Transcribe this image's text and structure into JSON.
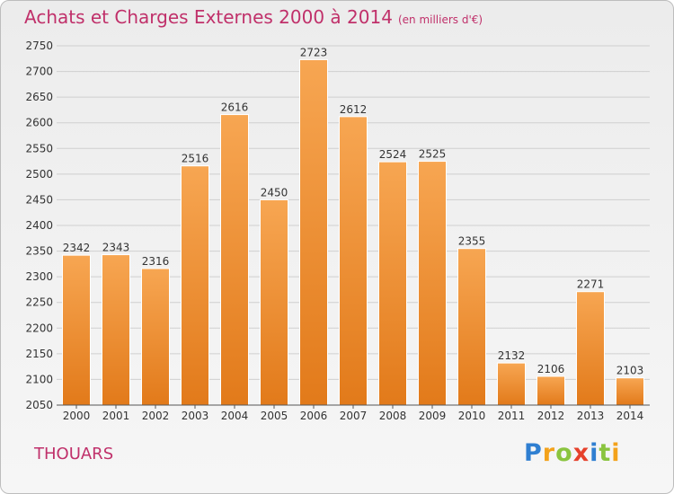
{
  "title": "Achats et Charges Externes 2000 à 2014",
  "unit_note": "(en milliers d'€)",
  "commune": "THOUARS",
  "logo": {
    "letters": [
      "P",
      "r",
      "o",
      "x",
      "i",
      "t",
      "i"
    ],
    "colors": [
      "#2f7fd1",
      "#f3a21b",
      "#8ac43f",
      "#e6412b",
      "#2f7fd1",
      "#8ac43f",
      "#f3a21b"
    ]
  },
  "chart_data": {
    "type": "bar",
    "categories": [
      "2000",
      "2001",
      "2002",
      "2003",
      "2004",
      "2005",
      "2006",
      "2007",
      "2008",
      "2009",
      "2010",
      "2011",
      "2012",
      "2013",
      "2014"
    ],
    "values": [
      2342,
      2343,
      2316,
      2516,
      2616,
      2450,
      2723,
      2612,
      2524,
      2525,
      2355,
      2132,
      2106,
      2271,
      2103
    ],
    "ylim": [
      2050,
      2750
    ],
    "yticks": [
      2050,
      2100,
      2150,
      2200,
      2250,
      2300,
      2350,
      2400,
      2450,
      2500,
      2550,
      2600,
      2650,
      2700,
      2750
    ],
    "grid": true,
    "colors": {
      "bar_top": "#f7a652",
      "bar_bottom": "#e27a1a",
      "grid": "#cfcfcf",
      "axis": "#555555"
    }
  }
}
